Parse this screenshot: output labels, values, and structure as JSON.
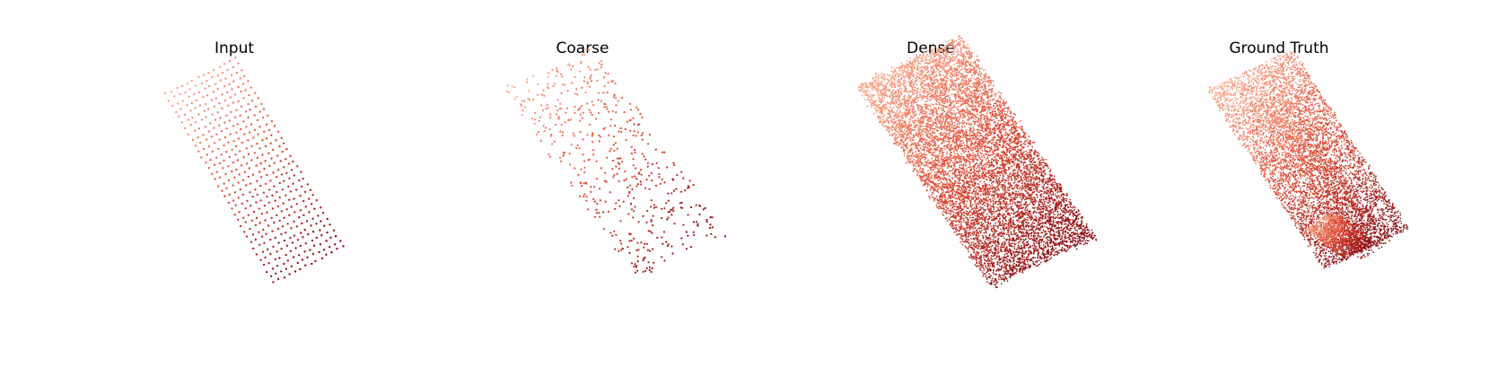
{
  "figure": {
    "panels": [
      {
        "id": "input",
        "title": "Input",
        "density": "sparse-grid"
      },
      {
        "id": "coarse",
        "title": "Coarse",
        "density": "sparse-random"
      },
      {
        "id": "dense",
        "title": "Dense",
        "density": "dense"
      },
      {
        "id": "ground_truth",
        "title": "Ground Truth",
        "density": "dense-structured"
      }
    ],
    "colormap": "Reds",
    "colors": {
      "light": "#fcae91",
      "mid": "#e34a33",
      "dark": "#8b0c13"
    }
  }
}
